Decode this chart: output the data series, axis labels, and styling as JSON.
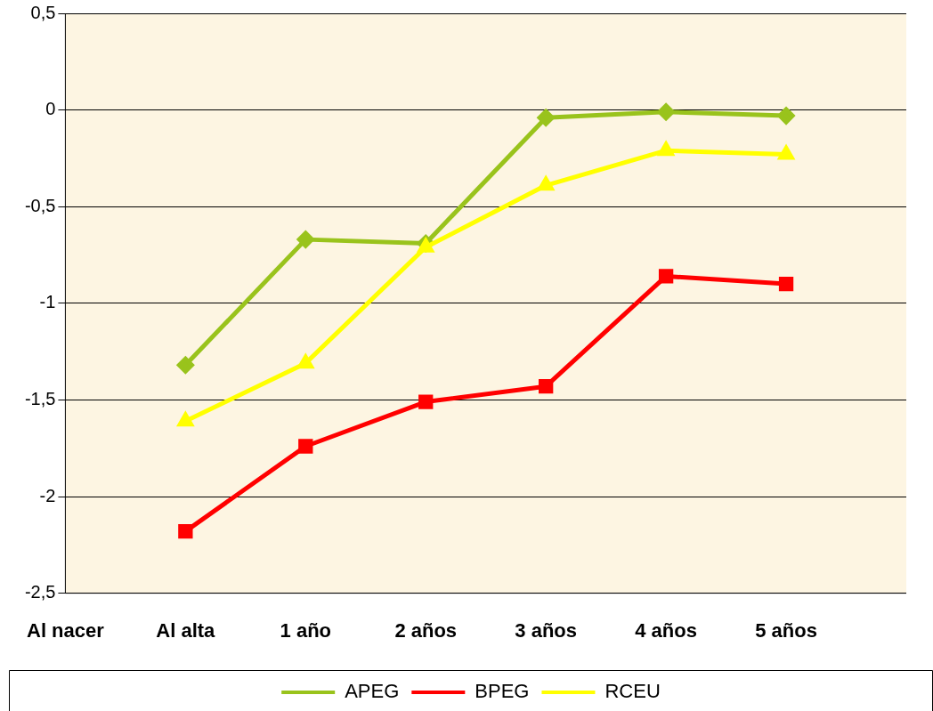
{
  "chart_data": {
    "type": "line",
    "categories": [
      "Al nacer",
      "Al alta",
      "1 año",
      "2 años",
      "3 años",
      "4 años",
      "5 años",
      null
    ],
    "series": [
      {
        "name": "APEG",
        "color": "#99c31c",
        "marker": "diamond",
        "values": [
          null,
          -1.32,
          -0.67,
          -0.69,
          -0.04,
          -0.01,
          -0.03,
          null
        ]
      },
      {
        "name": "BPEG",
        "color": "#ff0000",
        "marker": "square",
        "values": [
          null,
          -2.18,
          -1.74,
          -1.51,
          -1.43,
          -0.86,
          -0.9,
          null
        ]
      },
      {
        "name": "RCEU",
        "color": "#ffff00",
        "marker": "triangle",
        "values": [
          null,
          -1.61,
          -1.31,
          -0.71,
          -0.39,
          -0.21,
          -0.23,
          null
        ]
      }
    ],
    "ylim": [
      -2.5,
      0.5
    ],
    "yticks": [
      {
        "value": -2.5,
        "label": "-2,5"
      },
      -2,
      {
        "value": -1.5,
        "label": "-1,5"
      },
      -1,
      {
        "value": -0.5,
        "label": "-0,5"
      },
      0,
      {
        "value": 0.5,
        "label": "0,5"
      }
    ],
    "grid": "y",
    "legend": "bottom"
  }
}
